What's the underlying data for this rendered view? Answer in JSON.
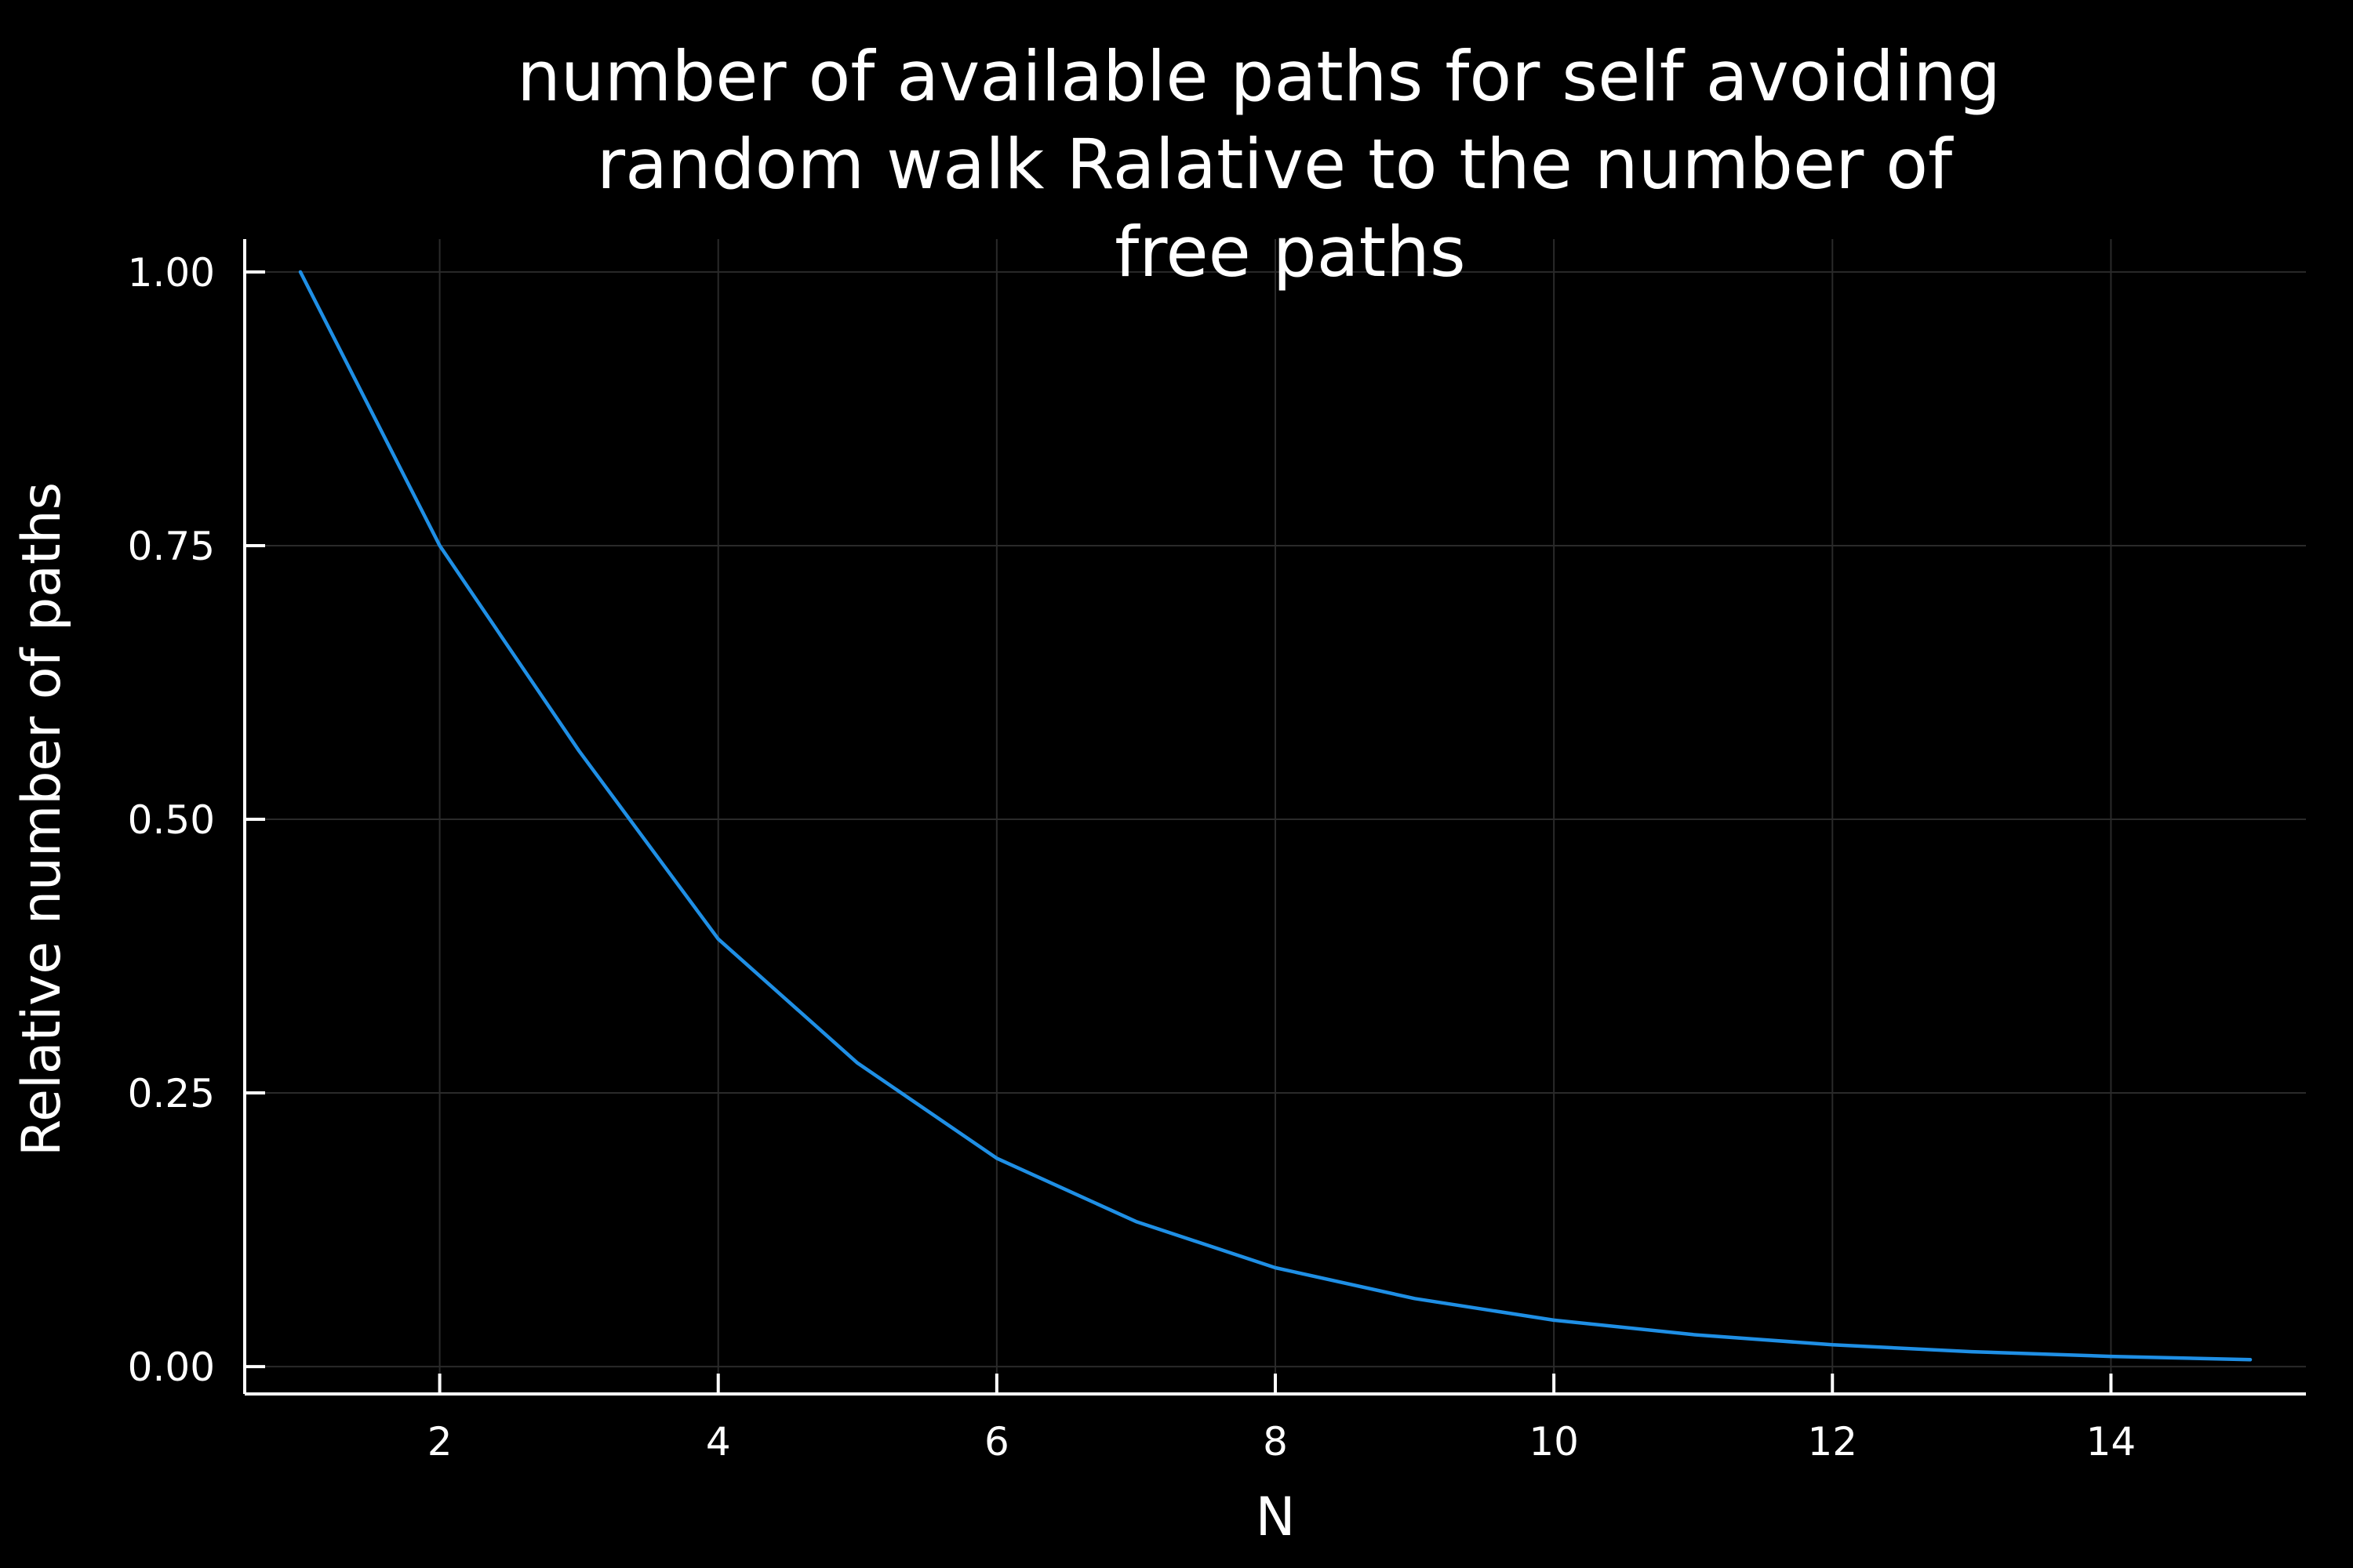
{
  "colors": {
    "background": "#000000",
    "foreground": "#ffffff",
    "grid": "#2a2a2a",
    "series": "#1f8fe5"
  },
  "chart_data": {
    "type": "line",
    "title_lines": [
      "number of available paths for self avoiding",
      "random walk Ralative to the number of",
      "free paths"
    ],
    "xlabel": "N",
    "ylabel": "Relative number of paths",
    "xlim": [
      0.6,
      15.4
    ],
    "ylim": [
      -0.025,
      1.03
    ],
    "xticks": [
      2,
      4,
      6,
      8,
      10,
      12,
      14
    ],
    "xtick_labels": [
      "2",
      "4",
      "6",
      "8",
      "10",
      "12",
      "14"
    ],
    "yticks": [
      0,
      0.25,
      0.5,
      0.75,
      1.0
    ],
    "ytick_labels": [
      "0.00",
      "0.25",
      "0.50",
      "0.75",
      "1.00"
    ],
    "grid": true,
    "legend": "none",
    "series": [
      {
        "x": [
          1,
          2,
          3,
          4,
          5,
          6,
          7,
          8,
          9,
          10,
          11,
          12,
          13,
          14,
          15
        ],
        "y": [
          1.0,
          0.75,
          0.5625,
          0.3906,
          0.2773,
          0.1903,
          0.1325,
          0.0903,
          0.0622,
          0.0424,
          0.0292,
          0.0199,
          0.0136,
          0.0093,
          0.0064
        ]
      }
    ]
  }
}
